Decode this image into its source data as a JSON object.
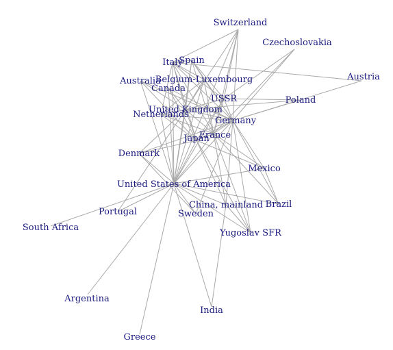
{
  "nodes": [
    {
      "id": "switzerland",
      "label": "Switzerland"
    },
    {
      "id": "czechoslovakia",
      "label": "Czechoslovakia"
    },
    {
      "id": "austria",
      "label": "Austria"
    },
    {
      "id": "spain",
      "label": "Spain"
    },
    {
      "id": "italy",
      "label": "Italy"
    },
    {
      "id": "belgium",
      "label": "Belgium-Luxembourg"
    },
    {
      "id": "australia",
      "label": "Australia"
    },
    {
      "id": "canada",
      "label": "Canada"
    },
    {
      "id": "ussr",
      "label": "USSR"
    },
    {
      "id": "poland",
      "label": "Poland"
    },
    {
      "id": "uk",
      "label": "United Kingdom"
    },
    {
      "id": "netherlands",
      "label": "Netherlands"
    },
    {
      "id": "germany",
      "label": "Germany"
    },
    {
      "id": "france",
      "label": "France"
    },
    {
      "id": "japan",
      "label": "Japan"
    },
    {
      "id": "denmark",
      "label": "Denmark"
    },
    {
      "id": "mexico",
      "label": "Mexico"
    },
    {
      "id": "usa",
      "label": "United States of America"
    },
    {
      "id": "china",
      "label": "China, mainland"
    },
    {
      "id": "brazil",
      "label": "Brazil"
    },
    {
      "id": "portugal",
      "label": "Portugal"
    },
    {
      "id": "sweden",
      "label": "Sweden"
    },
    {
      "id": "south_africa",
      "label": "South Africa"
    },
    {
      "id": "yugoslav",
      "label": "Yugoslav SFR"
    },
    {
      "id": "argentina",
      "label": "Argentina"
    },
    {
      "id": "india",
      "label": "India"
    },
    {
      "id": "greece",
      "label": "Greece"
    }
  ],
  "edges": [
    [
      "switzerland",
      "germany"
    ],
    [
      "switzerland",
      "uk"
    ],
    [
      "switzerland",
      "italy"
    ],
    [
      "switzerland",
      "france"
    ],
    [
      "switzerland",
      "ussr"
    ],
    [
      "switzerland",
      "usa"
    ],
    [
      "czechoslovakia",
      "germany"
    ],
    [
      "czechoslovakia",
      "ussr"
    ],
    [
      "czechoslovakia",
      "france"
    ],
    [
      "austria",
      "germany"
    ],
    [
      "austria",
      "italy"
    ],
    [
      "poland",
      "ussr"
    ],
    [
      "poland",
      "germany"
    ],
    [
      "poland",
      "uk"
    ],
    [
      "spain",
      "germany"
    ],
    [
      "spain",
      "france"
    ],
    [
      "spain",
      "usa"
    ],
    [
      "spain",
      "uk"
    ],
    [
      "spain",
      "italy"
    ],
    [
      "spain",
      "belgium"
    ],
    [
      "spain",
      "ussr"
    ],
    [
      "italy",
      "germany"
    ],
    [
      "italy",
      "france"
    ],
    [
      "italy",
      "usa"
    ],
    [
      "italy",
      "uk"
    ],
    [
      "italy",
      "belgium"
    ],
    [
      "italy",
      "ussr"
    ],
    [
      "italy",
      "netherlands"
    ],
    [
      "italy",
      "japan"
    ],
    [
      "belgium",
      "germany"
    ],
    [
      "belgium",
      "france"
    ],
    [
      "belgium",
      "netherlands"
    ],
    [
      "belgium",
      "uk"
    ],
    [
      "belgium",
      "usa"
    ],
    [
      "australia",
      "uk"
    ],
    [
      "australia",
      "usa"
    ],
    [
      "australia",
      "japan"
    ],
    [
      "australia",
      "germany"
    ],
    [
      "canada",
      "usa"
    ],
    [
      "canada",
      "uk"
    ],
    [
      "canada",
      "japan"
    ],
    [
      "canada",
      "germany"
    ],
    [
      "ussr",
      "germany"
    ],
    [
      "ussr",
      "france"
    ],
    [
      "ussr",
      "uk"
    ],
    [
      "ussr",
      "usa"
    ],
    [
      "ussr",
      "japan"
    ],
    [
      "uk",
      "usa"
    ],
    [
      "uk",
      "germany"
    ],
    [
      "uk",
      "france"
    ],
    [
      "uk",
      "netherlands"
    ],
    [
      "uk",
      "japan"
    ],
    [
      "uk",
      "denmark"
    ],
    [
      "netherlands",
      "germany"
    ],
    [
      "netherlands",
      "france"
    ],
    [
      "netherlands",
      "usa"
    ],
    [
      "netherlands",
      "japan"
    ],
    [
      "germany",
      "france"
    ],
    [
      "germany",
      "usa"
    ],
    [
      "germany",
      "japan"
    ],
    [
      "germany",
      "denmark"
    ],
    [
      "germany",
      "sweden"
    ],
    [
      "germany",
      "china"
    ],
    [
      "germany",
      "brazil"
    ],
    [
      "germany",
      "mexico"
    ],
    [
      "germany",
      "yugoslav"
    ],
    [
      "france",
      "usa"
    ],
    [
      "france",
      "japan"
    ],
    [
      "france",
      "mexico"
    ],
    [
      "france",
      "brazil"
    ],
    [
      "france",
      "china"
    ],
    [
      "france",
      "yugoslav"
    ],
    [
      "japan",
      "usa"
    ],
    [
      "japan",
      "china"
    ],
    [
      "japan",
      "denmark"
    ],
    [
      "japan",
      "mexico"
    ],
    [
      "japan",
      "yugoslav"
    ],
    [
      "denmark",
      "usa"
    ],
    [
      "denmark",
      "sweden"
    ],
    [
      "mexico",
      "usa"
    ],
    [
      "mexico",
      "brazil"
    ],
    [
      "usa",
      "china"
    ],
    [
      "usa",
      "brazil"
    ],
    [
      "usa",
      "portugal"
    ],
    [
      "usa",
      "south_africa"
    ],
    [
      "usa",
      "sweden"
    ],
    [
      "usa",
      "yugoslav"
    ],
    [
      "usa",
      "argentina"
    ],
    [
      "usa",
      "india"
    ],
    [
      "usa",
      "greece"
    ],
    [
      "china",
      "india"
    ],
    [
      "china",
      "yugoslav"
    ],
    [
      "portugal",
      "uk"
    ]
  ]
}
